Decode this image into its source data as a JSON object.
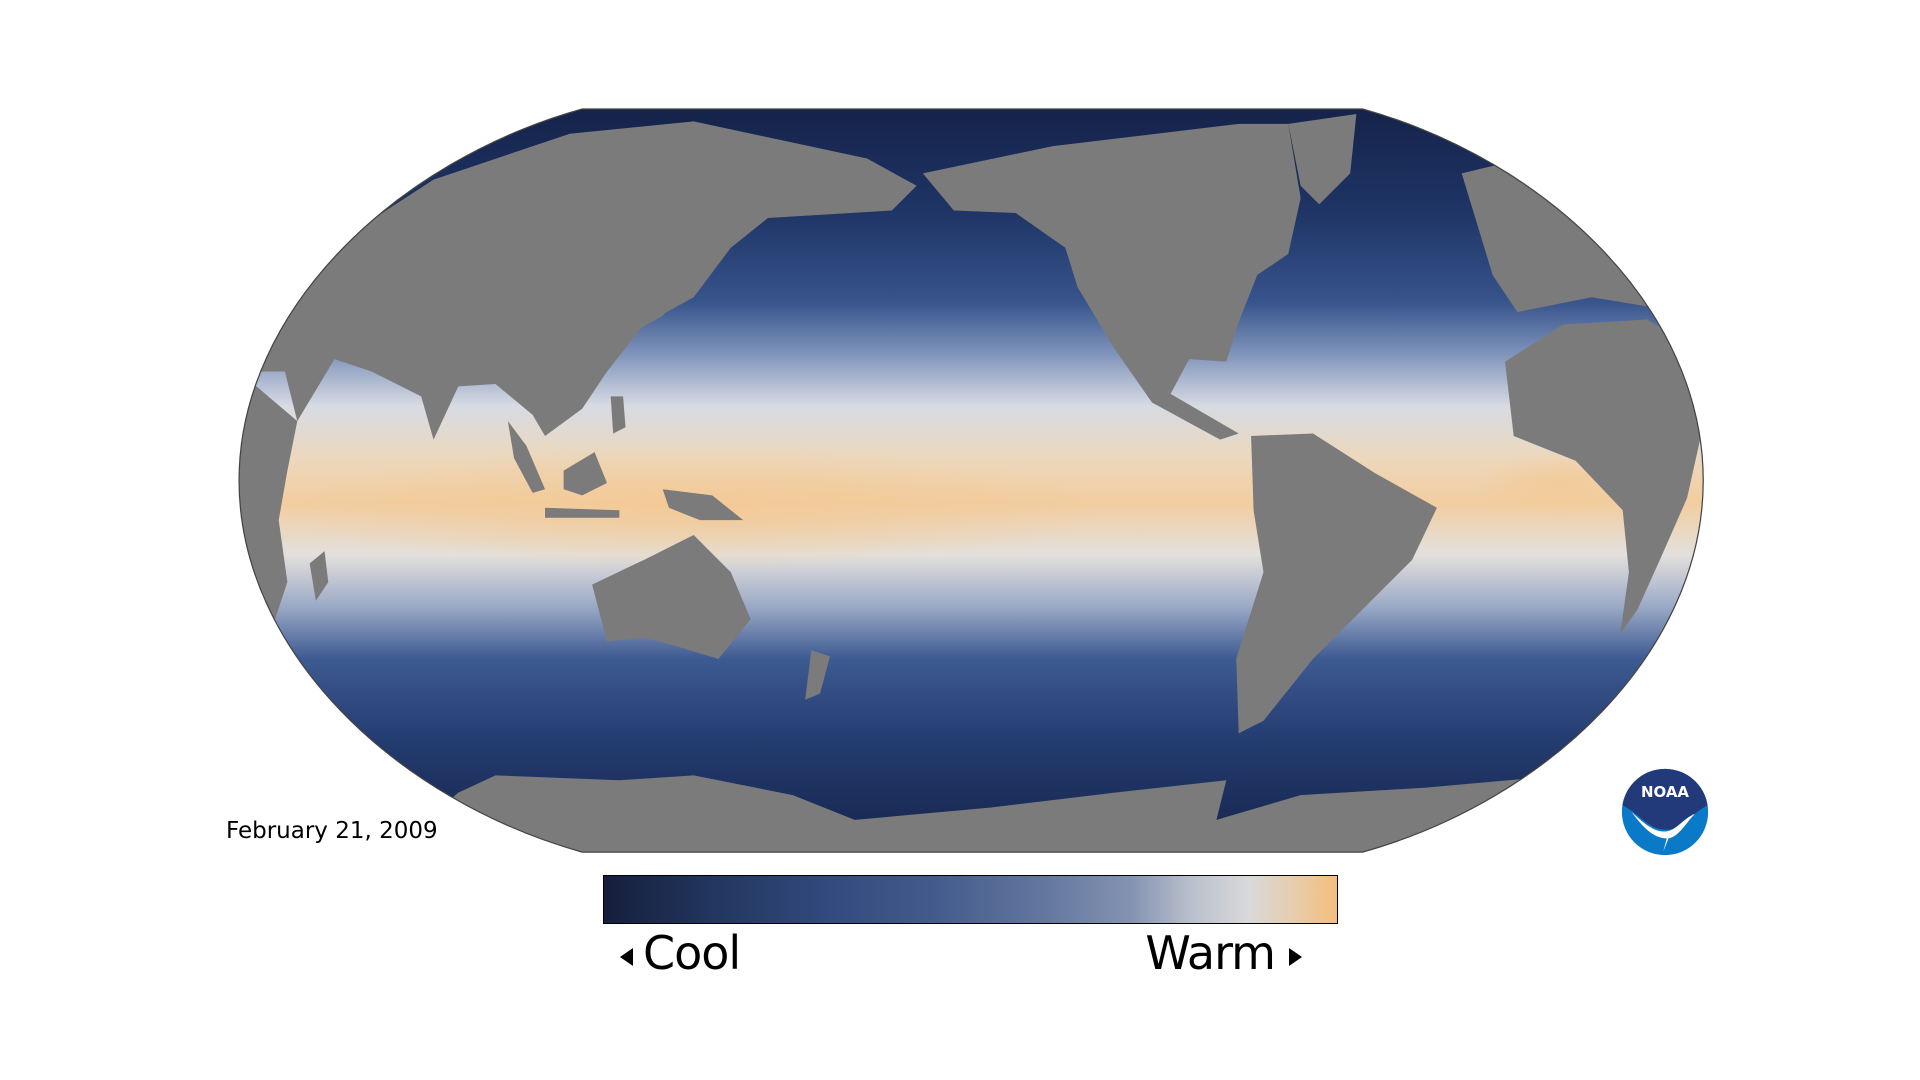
{
  "map": {
    "date": "February 21, 2009",
    "land_color": "#7b7b7b",
    "ocean_cool_color": "#161f3c",
    "ocean_warm_color": "#f6bd7e"
  },
  "legend": {
    "cool_label": "Cool",
    "warm_label": "Warm",
    "gradient_colors": [
      "#161f3c",
      "#31497c",
      "#63779e",
      "#d9d9da",
      "#f6bd7e"
    ]
  },
  "logo": {
    "text": "NOAA",
    "color_top": "#233a7a",
    "color_bottom": "#0a7ac8"
  }
}
